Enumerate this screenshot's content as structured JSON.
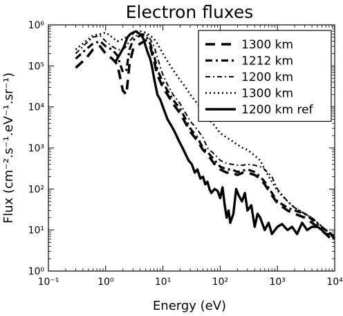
{
  "chart_data": {
    "type": "line",
    "title": "Electron fluxes",
    "xlabel": "Energy (eV)",
    "ylabel": "Flux (cm⁻².s⁻¹.eV⁻¹.sr⁻¹)",
    "x_scale": "log",
    "y_scale": "log",
    "xlim": [
      0.1,
      10000
    ],
    "ylim": [
      1,
      1000000
    ],
    "grid": false,
    "legend_position": "top-right",
    "x_tick_labels": [
      "10⁻¹",
      "10⁰",
      "10¹",
      "10²",
      "10³",
      "10⁴"
    ],
    "y_tick_labels": [
      "10⁰",
      "10¹",
      "10²",
      "10³",
      "10⁴",
      "10⁵",
      "10⁶"
    ],
    "series": [
      {
        "name": "1300 km",
        "line_style": "dashed",
        "x": [
          0.3,
          0.45,
          0.6,
          0.8,
          1.0,
          1.3,
          1.6,
          2.0,
          2.3,
          2.6,
          3.0,
          3.5,
          4.0,
          5.0,
          6.0,
          7.0,
          8.0,
          10,
          12,
          15,
          20,
          25,
          30,
          40,
          50,
          60,
          80,
          100,
          130,
          160,
          200,
          250,
          300,
          400,
          500,
          600,
          800,
          1000,
          1500,
          2000,
          3000,
          4000,
          5000,
          7000,
          10000
        ],
        "y": [
          90000,
          150000,
          250000,
          300000,
          200000,
          150000,
          110000,
          25000,
          20000,
          110000,
          250000,
          300000,
          350000,
          420000,
          300000,
          130000,
          60000,
          30000,
          20000,
          12000,
          7000,
          4000,
          2500,
          1500,
          900,
          700,
          400,
          300,
          250,
          250,
          220,
          250,
          250,
          220,
          180,
          130,
          70,
          45,
          30,
          25,
          20,
          15,
          12,
          8,
          5
        ]
      },
      {
        "name": "1212 km",
        "line_style": "dash-dot",
        "x": [
          0.3,
          0.45,
          0.6,
          0.8,
          1.0,
          1.3,
          1.6,
          2.0,
          2.3,
          2.6,
          3.0,
          3.5,
          4.0,
          5.0,
          6.0,
          7.0,
          8.0,
          10,
          12,
          15,
          20,
          25,
          30,
          40,
          50,
          60,
          80,
          100,
          130,
          160,
          200,
          250,
          300,
          400,
          500,
          600,
          800,
          1000,
          1500,
          2000,
          3000,
          4000,
          5000,
          7000,
          10000
        ],
        "y": [
          150000,
          250000,
          350000,
          400000,
          300000,
          250000,
          180000,
          70000,
          80000,
          250000,
          420000,
          500000,
          550000,
          550000,
          350000,
          180000,
          80000,
          40000,
          25000,
          15000,
          9000,
          5000,
          3000,
          1800,
          1000,
          800,
          500,
          350,
          300,
          300,
          260,
          280,
          300,
          260,
          200,
          150,
          80,
          50,
          35,
          30,
          25,
          18,
          14,
          10,
          7
        ]
      },
      {
        "name": "1200 km",
        "line_style": "dash-dot-fine",
        "x": [
          0.3,
          0.45,
          0.6,
          0.8,
          1.0,
          1.3,
          1.6,
          2.0,
          2.3,
          2.6,
          3.0,
          3.5,
          4.0,
          5.0,
          6.0,
          7.0,
          8.0,
          10,
          12,
          15,
          20,
          25,
          30,
          40,
          50,
          60,
          80,
          100,
          130,
          160,
          200,
          250,
          300,
          400,
          500,
          600,
          800,
          1000,
          1500,
          2000,
          3000,
          4000,
          5000,
          7000,
          10000
        ],
        "y": [
          200000,
          350000,
          500000,
          550000,
          400000,
          300000,
          250000,
          250000,
          300000,
          400000,
          500000,
          550000,
          600000,
          600000,
          450000,
          300000,
          160000,
          60000,
          35000,
          20000,
          12000,
          7000,
          4500,
          2800,
          1800,
          1000,
          700,
          500,
          420,
          400,
          380,
          380,
          400,
          380,
          350,
          300,
          200,
          100,
          50,
          35,
          25,
          20,
          15,
          10,
          7
        ]
      },
      {
        "name": "1300 km",
        "line_style": "dotted",
        "x": [
          0.3,
          0.45,
          0.6,
          0.8,
          1.0,
          1.3,
          1.6,
          2.0,
          2.3,
          2.6,
          3.0,
          3.5,
          4.0,
          5.0,
          6.0,
          7.0,
          8.0,
          10,
          12,
          15,
          20,
          25,
          30,
          40,
          50,
          60,
          80,
          100,
          130,
          160,
          200,
          250,
          300,
          400,
          500,
          600,
          800,
          1000,
          1500,
          2000,
          3000,
          4000,
          5000,
          7000,
          10000
        ],
        "y": [
          250000,
          400000,
          550000,
          600000,
          650000,
          500000,
          400000,
          450000,
          500000,
          550000,
          600000,
          650000,
          700000,
          650000,
          550000,
          450000,
          350000,
          200000,
          130000,
          80000,
          45000,
          30000,
          20000,
          12000,
          8000,
          5500,
          3500,
          2300,
          1800,
          1500,
          1200,
          1000,
          900,
          650,
          500,
          300,
          150,
          90,
          50,
          35,
          25,
          20,
          15,
          10,
          7
        ]
      },
      {
        "name": "1200 km ref",
        "line_style": "solid",
        "x": [
          1.5,
          1.8,
          2.1,
          2.4,
          2.7,
          3.0,
          3.4,
          3.8,
          4.2,
          4.6,
          5.0,
          5.5,
          6.0,
          6.5,
          7.0,
          8.0,
          9.0,
          10,
          12,
          14,
          16,
          19,
          22,
          25,
          28,
          32,
          36,
          40,
          45,
          50,
          55,
          60,
          65,
          70,
          80,
          90,
          100,
          110,
          120,
          130,
          140,
          150,
          170,
          190,
          210,
          240,
          270,
          300,
          350,
          400,
          450,
          500,
          600,
          700,
          800,
          1000,
          1200,
          1500,
          1800,
          2200,
          2700,
          3300,
          4000,
          5000,
          6000,
          7000,
          8500,
          10000
        ],
        "y": [
          130000,
          200000,
          300000,
          500000,
          600000,
          650000,
          700000,
          620000,
          550000,
          450000,
          300000,
          200000,
          150000,
          90000,
          50000,
          20000,
          15000,
          10000,
          5000,
          3500,
          2500,
          1500,
          1000,
          700,
          500,
          400,
          250,
          300,
          180,
          200,
          130,
          150,
          100,
          80,
          100,
          90,
          60,
          110,
          40,
          20,
          30,
          15,
          25,
          100,
          70,
          50,
          80,
          30,
          40,
          12,
          25,
          20,
          10,
          15,
          8,
          12,
          14,
          10,
          12,
          8,
          15,
          10,
          12,
          12,
          10,
          8,
          8,
          6
        ]
      }
    ]
  }
}
